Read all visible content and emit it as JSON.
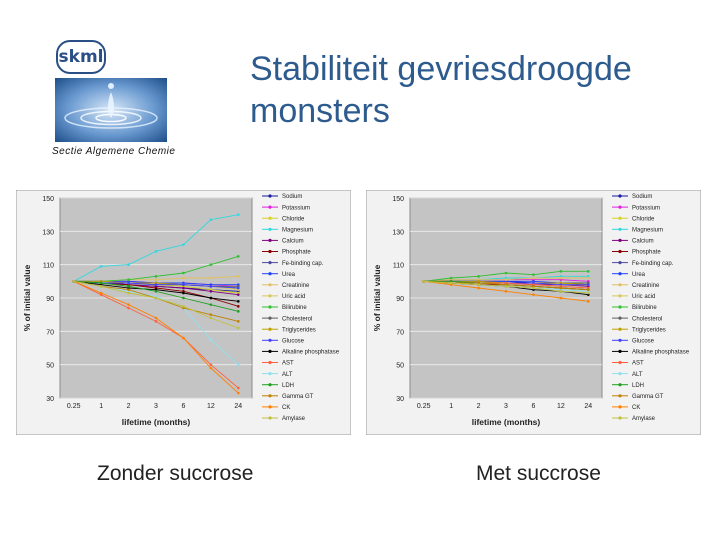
{
  "header": {
    "logo_text": "skml",
    "section": "Sectie Algemene Chemie",
    "title_line1": "Stabiliteit gevriesdroogde",
    "title_line2": "monsters"
  },
  "captions": {
    "left": "Zonder succrose",
    "right": "Met succrose"
  },
  "colors": [
    "#1a1aa0",
    "#e020e0",
    "#d8d020",
    "#30d8e0",
    "#800080",
    "#8b0000",
    "#4a4aa0",
    "#2040ff",
    "#e0c060",
    "#d8c860",
    "#30c030",
    "#606060",
    "#c0a000",
    "#4040ff",
    "#000000",
    "#ff6040",
    "#90e0f0",
    "#20a020",
    "#c08000",
    "#ff8000",
    "#c0c040"
  ],
  "chart_data": [
    {
      "type": "line",
      "title": "Zonder succrose",
      "xlabel": "lifetime (months)",
      "ylabel": "% of initial value",
      "categories": [
        "0.25",
        "1",
        "2",
        "3",
        "6",
        "12",
        "24"
      ],
      "ylim": [
        30,
        150
      ],
      "yticks": [
        30,
        50,
        70,
        90,
        110,
        130,
        150
      ],
      "series": [
        {
          "name": "Sodium",
          "values": [
            100,
            99,
            98,
            97,
            96,
            95,
            94
          ]
        },
        {
          "name": "Potassium",
          "values": [
            100,
            100,
            100,
            99,
            99,
            98,
            97
          ]
        },
        {
          "name": "Chloride",
          "values": [
            100,
            99,
            99,
            98,
            97,
            95,
            93
          ]
        },
        {
          "name": "Magnesium",
          "values": [
            100,
            109,
            110,
            118,
            122,
            137,
            140
          ]
        },
        {
          "name": "Calcium",
          "values": [
            100,
            99,
            98,
            97,
            96,
            94,
            92
          ]
        },
        {
          "name": "Phosphate",
          "values": [
            100,
            99,
            98,
            96,
            94,
            90,
            85
          ]
        },
        {
          "name": "Fe-binding cap.",
          "values": [
            100,
            100,
            99,
            99,
            98,
            97,
            96
          ]
        },
        {
          "name": "Urea",
          "values": [
            100,
            100,
            100,
            99,
            99,
            98,
            98
          ]
        },
        {
          "name": "Creatinine",
          "values": [
            100,
            100,
            101,
            101,
            102,
            102,
            103
          ]
        },
        {
          "name": "Uric acid",
          "values": [
            100,
            99,
            99,
            98,
            98,
            97,
            95
          ]
        },
        {
          "name": "Bilirubine",
          "values": [
            100,
            100,
            101,
            103,
            105,
            110,
            115
          ]
        },
        {
          "name": "Cholesterol",
          "values": [
            100,
            99,
            99,
            98,
            98,
            97,
            97
          ]
        },
        {
          "name": "Triglycerides",
          "values": [
            100,
            100,
            99,
            99,
            98,
            97,
            96
          ]
        },
        {
          "name": "Glucose",
          "values": [
            100,
            99,
            99,
            98,
            98,
            97,
            96
          ]
        },
        {
          "name": "Alkaline phosphatase",
          "values": [
            100,
            98,
            96,
            95,
            93,
            90,
            88
          ]
        },
        {
          "name": "AST",
          "values": [
            100,
            92,
            84,
            76,
            66,
            50,
            36
          ]
        },
        {
          "name": "ALT",
          "values": [
            100,
            97,
            94,
            91,
            84,
            65,
            50
          ]
        },
        {
          "name": "LDH",
          "values": [
            100,
            99,
            97,
            94,
            90,
            86,
            82
          ]
        },
        {
          "name": "Gamma GT",
          "values": [
            100,
            97,
            95,
            90,
            84,
            80,
            76
          ]
        },
        {
          "name": "CK",
          "values": [
            100,
            93,
            86,
            78,
            66,
            48,
            33
          ]
        },
        {
          "name": "Amylase",
          "values": [
            100,
            97,
            93,
            90,
            85,
            78,
            72
          ]
        }
      ]
    },
    {
      "type": "line",
      "title": "Met succrose",
      "xlabel": "lifetime (months)",
      "ylabel": "% of initial value",
      "categories": [
        "0.25",
        "1",
        "2",
        "3",
        "6",
        "12",
        "24"
      ],
      "ylim": [
        30,
        150
      ],
      "yticks": [
        30,
        50,
        70,
        90,
        110,
        130,
        150
      ],
      "series": [
        {
          "name": "Sodium",
          "values": [
            100,
            100,
            100,
            100,
            99,
            99,
            98
          ]
        },
        {
          "name": "Potassium",
          "values": [
            100,
            101,
            101,
            101,
            101,
            101,
            100
          ]
        },
        {
          "name": "Chloride",
          "values": [
            100,
            100,
            100,
            99,
            99,
            99,
            98
          ]
        },
        {
          "name": "Magnesium",
          "values": [
            100,
            101,
            101,
            102,
            102,
            103,
            103
          ]
        },
        {
          "name": "Calcium",
          "values": [
            100,
            100,
            99,
            99,
            98,
            98,
            97
          ]
        },
        {
          "name": "Phosphate",
          "values": [
            100,
            99,
            98,
            98,
            97,
            96,
            95
          ]
        },
        {
          "name": "Fe-binding cap.",
          "values": [
            100,
            100,
            99,
            99,
            99,
            98,
            98
          ]
        },
        {
          "name": "Urea",
          "values": [
            100,
            100,
            100,
            100,
            100,
            99,
            99
          ]
        },
        {
          "name": "Creatinine",
          "values": [
            100,
            101,
            101,
            101,
            102,
            102,
            102
          ]
        },
        {
          "name": "Uric acid",
          "values": [
            100,
            100,
            99,
            99,
            99,
            98,
            98
          ]
        },
        {
          "name": "Bilirubine",
          "values": [
            100,
            102,
            103,
            105,
            104,
            106,
            106
          ]
        },
        {
          "name": "Cholesterol",
          "values": [
            100,
            100,
            100,
            99,
            99,
            99,
            99
          ]
        },
        {
          "name": "Triglycerides",
          "values": [
            100,
            100,
            100,
            99,
            99,
            99,
            98
          ]
        },
        {
          "name": "Glucose",
          "values": [
            100,
            100,
            99,
            99,
            99,
            98,
            98
          ]
        },
        {
          "name": "Alkaline phosphatase",
          "values": [
            100,
            99,
            98,
            97,
            95,
            94,
            92
          ]
        },
        {
          "name": "AST",
          "values": [
            100,
            100,
            99,
            99,
            98,
            97,
            96
          ]
        },
        {
          "name": "ALT",
          "values": [
            100,
            99,
            98,
            97,
            96,
            95,
            94
          ]
        },
        {
          "name": "LDH",
          "values": [
            100,
            100,
            99,
            98,
            97,
            96,
            95
          ]
        },
        {
          "name": "Gamma GT",
          "values": [
            100,
            99,
            99,
            98,
            97,
            96,
            95
          ]
        },
        {
          "name": "CK",
          "values": [
            100,
            98,
            96,
            94,
            92,
            90,
            88
          ]
        },
        {
          "name": "Amylase",
          "values": [
            100,
            99,
            98,
            97,
            96,
            94,
            93
          ]
        }
      ]
    }
  ]
}
